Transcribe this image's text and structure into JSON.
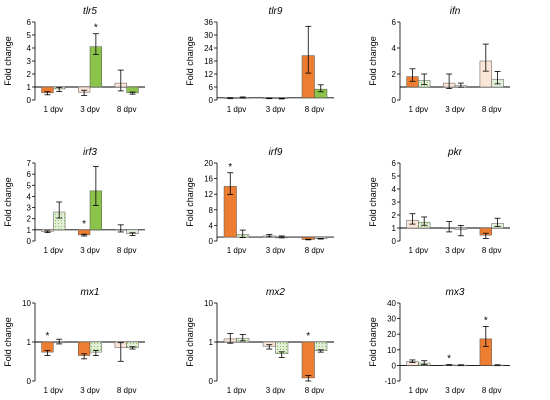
{
  "colors": {
    "orange": "#ED7D31",
    "orange_light": "#FBE5D6",
    "green": "#8CC34A",
    "green_light": "#E2F0D9",
    "axis": "#000000"
  },
  "chart_data": [
    {
      "type": "bar",
      "title": "tlr5",
      "ylabel": "Fold change",
      "categories": [
        "1 dpv",
        "3 dpv",
        "8 dpv"
      ],
      "ylim": [
        0,
        6
      ],
      "yticks": [
        0,
        1,
        2,
        3,
        4,
        5,
        6
      ],
      "baseline": 1,
      "series": [
        {
          "values": [
            0.55,
            0.6,
            1.3
          ],
          "errors": [
            0.15,
            0.25,
            1.0
          ],
          "fills": [
            "orange",
            "orange_light",
            "orange_light"
          ],
          "patterns": [
            false,
            false,
            false
          ]
        },
        {
          "values": [
            0.85,
            4.1,
            0.55
          ],
          "errors": [
            0.2,
            1.0,
            0.1
          ],
          "fills": [
            "green_light",
            "green",
            "green"
          ],
          "patterns": [
            true,
            false,
            false
          ]
        }
      ],
      "stars": [
        {
          "cat": 1,
          "series": 1,
          "label": "*"
        }
      ]
    },
    {
      "type": "bar",
      "title": "tlr9",
      "ylabel": "Fold change",
      "categories": [
        "1 dpv",
        "3 dpv",
        "8 dpv"
      ],
      "ylim": [
        0,
        36
      ],
      "yticks": [
        0,
        6,
        12,
        18,
        24,
        30,
        36
      ],
      "baseline": 1,
      "series": [
        {
          "values": [
            0.9,
            0.8,
            20.5
          ],
          "errors": [
            0.3,
            0.2,
            13.5
          ],
          "fills": [
            "orange_light",
            "orange_light",
            "orange"
          ],
          "patterns": [
            false,
            false,
            false
          ]
        },
        {
          "values": [
            1.1,
            0.7,
            5.0
          ],
          "errors": [
            0.3,
            0.2,
            2.0
          ],
          "fills": [
            "green_light",
            "green_light",
            "green"
          ],
          "patterns": [
            false,
            false,
            false
          ]
        }
      ],
      "stars": []
    },
    {
      "type": "bar",
      "title": "ifn",
      "ylabel": "Fold change",
      "categories": [
        "1 dpv",
        "3 dpv",
        "8 dpv"
      ],
      "ylim": [
        0,
        6
      ],
      "yticks": [
        0,
        2,
        4,
        6
      ],
      "baseline": 1,
      "series": [
        {
          "values": [
            1.8,
            1.3,
            3.0
          ],
          "errors": [
            0.6,
            0.7,
            1.3
          ],
          "fills": [
            "orange",
            "orange_light",
            "orange_light"
          ],
          "patterns": [
            false,
            false,
            false
          ]
        },
        {
          "values": [
            1.5,
            1.1,
            1.6
          ],
          "errors": [
            0.5,
            0.2,
            0.6
          ],
          "fills": [
            "green_light",
            "green_light",
            "green_light"
          ],
          "patterns": [
            true,
            false,
            false
          ]
        }
      ],
      "stars": []
    },
    {
      "type": "bar",
      "title": "irf3",
      "ylabel": "Fold change",
      "categories": [
        "1 dpv",
        "3 dpv",
        "8 dpv"
      ],
      "ylim": [
        0,
        7
      ],
      "yticks": [
        0,
        1,
        2,
        3,
        4,
        5,
        6,
        7
      ],
      "baseline": 1,
      "series": [
        {
          "values": [
            0.85,
            0.55,
            1.05
          ],
          "errors": [
            0.1,
            0.1,
            0.4
          ],
          "fills": [
            "orange_light",
            "orange",
            "orange_light"
          ],
          "patterns": [
            false,
            false,
            false
          ]
        },
        {
          "values": [
            2.6,
            4.5,
            0.65
          ],
          "errors": [
            0.9,
            2.2,
            0.15
          ],
          "fills": [
            "green_light",
            "green",
            "green_light"
          ],
          "patterns": [
            true,
            false,
            false
          ]
        }
      ],
      "stars": [
        {
          "cat": 1,
          "series": 0,
          "label": "*"
        }
      ]
    },
    {
      "type": "bar",
      "title": "irf9",
      "ylabel": "Fold change",
      "categories": [
        "1 dpv",
        "3 dpv",
        "8 dpv"
      ],
      "ylim": [
        0,
        20
      ],
      "yticks": [
        0,
        4,
        8,
        12,
        16,
        20
      ],
      "baseline": 1,
      "series": [
        {
          "values": [
            14.0,
            1.3,
            0.4
          ],
          "errors": [
            3.5,
            0.4,
            0.1
          ],
          "fills": [
            "orange",
            "orange_light",
            "orange"
          ],
          "patterns": [
            false,
            false,
            false
          ]
        },
        {
          "values": [
            1.6,
            1.0,
            0.6
          ],
          "errors": [
            1.2,
            0.3,
            0.1
          ],
          "fills": [
            "green_light",
            "green_light",
            "green_light"
          ],
          "patterns": [
            true,
            false,
            false
          ]
        }
      ],
      "stars": [
        {
          "cat": 0,
          "series": 0,
          "label": "*"
        }
      ]
    },
    {
      "type": "bar",
      "title": "pkr",
      "ylabel": "Fold change",
      "categories": [
        "1 dpv",
        "3 dpv",
        "8 dpv"
      ],
      "ylim": [
        0,
        6
      ],
      "yticks": [
        0,
        1,
        2,
        3,
        4,
        5,
        6
      ],
      "baseline": 1,
      "series": [
        {
          "values": [
            1.6,
            1.0,
            0.45
          ],
          "errors": [
            0.5,
            0.5,
            0.25
          ],
          "fills": [
            "orange_light",
            "orange_light",
            "orange"
          ],
          "patterns": [
            false,
            false,
            false
          ]
        },
        {
          "values": [
            1.45,
            0.9,
            1.35
          ],
          "errors": [
            0.4,
            0.5,
            0.4
          ],
          "fills": [
            "green_light",
            "green_light",
            "green_light"
          ],
          "patterns": [
            true,
            false,
            false
          ]
        }
      ],
      "stars": []
    },
    {
      "type": "bar",
      "title": "mx1",
      "ylabel": "Fold change",
      "ylog": true,
      "categories": [
        "1 dpv",
        "3 dpv",
        "8 dpv"
      ],
      "ylim": [
        0.1,
        10
      ],
      "yticks": [
        0.1,
        1,
        10
      ],
      "ytick_labels": [
        "0",
        "1",
        "10"
      ],
      "baseline": 1,
      "series": [
        {
          "values": [
            0.55,
            0.45,
            0.72
          ],
          "errors": [
            0.1,
            0.08,
            0.4
          ],
          "fills": [
            "orange",
            "orange",
            "orange_light"
          ],
          "patterns": [
            false,
            false,
            false
          ]
        },
        {
          "values": [
            1.0,
            0.55,
            0.72
          ],
          "errors": [
            0.18,
            0.1,
            0.06
          ],
          "fills": [
            "green_light",
            "green_light",
            "green_light"
          ],
          "patterns": [
            true,
            true,
            true
          ]
        }
      ],
      "stars": [
        {
          "cat": 0,
          "series": 0,
          "label": "*"
        }
      ]
    },
    {
      "type": "bar",
      "title": "mx2",
      "ylabel": "Fold change",
      "ylog": true,
      "categories": [
        "1 dpv",
        "3 dpv",
        "8 dpv"
      ],
      "ylim": [
        0.1,
        10
      ],
      "yticks": [
        0.1,
        1,
        10
      ],
      "ytick_labels": [
        "0",
        "1",
        "10"
      ],
      "baseline": 1,
      "series": [
        {
          "values": [
            1.2,
            0.78,
            0.12
          ],
          "errors": [
            0.45,
            0.12,
            0.03
          ],
          "fills": [
            "orange_light",
            "orange_light",
            "orange"
          ],
          "patterns": [
            false,
            false,
            false
          ]
        },
        {
          "values": [
            1.25,
            0.5,
            0.6
          ],
          "errors": [
            0.3,
            0.1,
            0.05
          ],
          "fills": [
            "green_light",
            "green_light",
            "green_light"
          ],
          "patterns": [
            true,
            true,
            true
          ]
        }
      ],
      "stars": [
        {
          "cat": 2,
          "series": 0,
          "label": "*"
        }
      ]
    },
    {
      "type": "bar",
      "title": "mx3",
      "ylabel": "Fold change",
      "categories": [
        "1 dpv",
        "3 dpv",
        "8 dpv"
      ],
      "ylim": [
        -10,
        40
      ],
      "yticks": [
        -10,
        0,
        10,
        20,
        30,
        40
      ],
      "baseline": 0,
      "series": [
        {
          "values": [
            2.5,
            0.3,
            17.0
          ],
          "errors": [
            1.0,
            0.2,
            8.0
          ],
          "fills": [
            "orange_light",
            "orange_light",
            "orange"
          ],
          "patterns": [
            false,
            false,
            false
          ]
        },
        {
          "values": [
            1.5,
            0.2,
            0.2
          ],
          "errors": [
            1.5,
            0.2,
            0.2
          ],
          "fills": [
            "green_light",
            "green_light",
            "green_light"
          ],
          "patterns": [
            true,
            false,
            false
          ]
        }
      ],
      "stars": [
        {
          "cat": 1,
          "series": 0,
          "label": "*"
        },
        {
          "cat": 2,
          "series": 0,
          "label": "*"
        }
      ]
    }
  ]
}
